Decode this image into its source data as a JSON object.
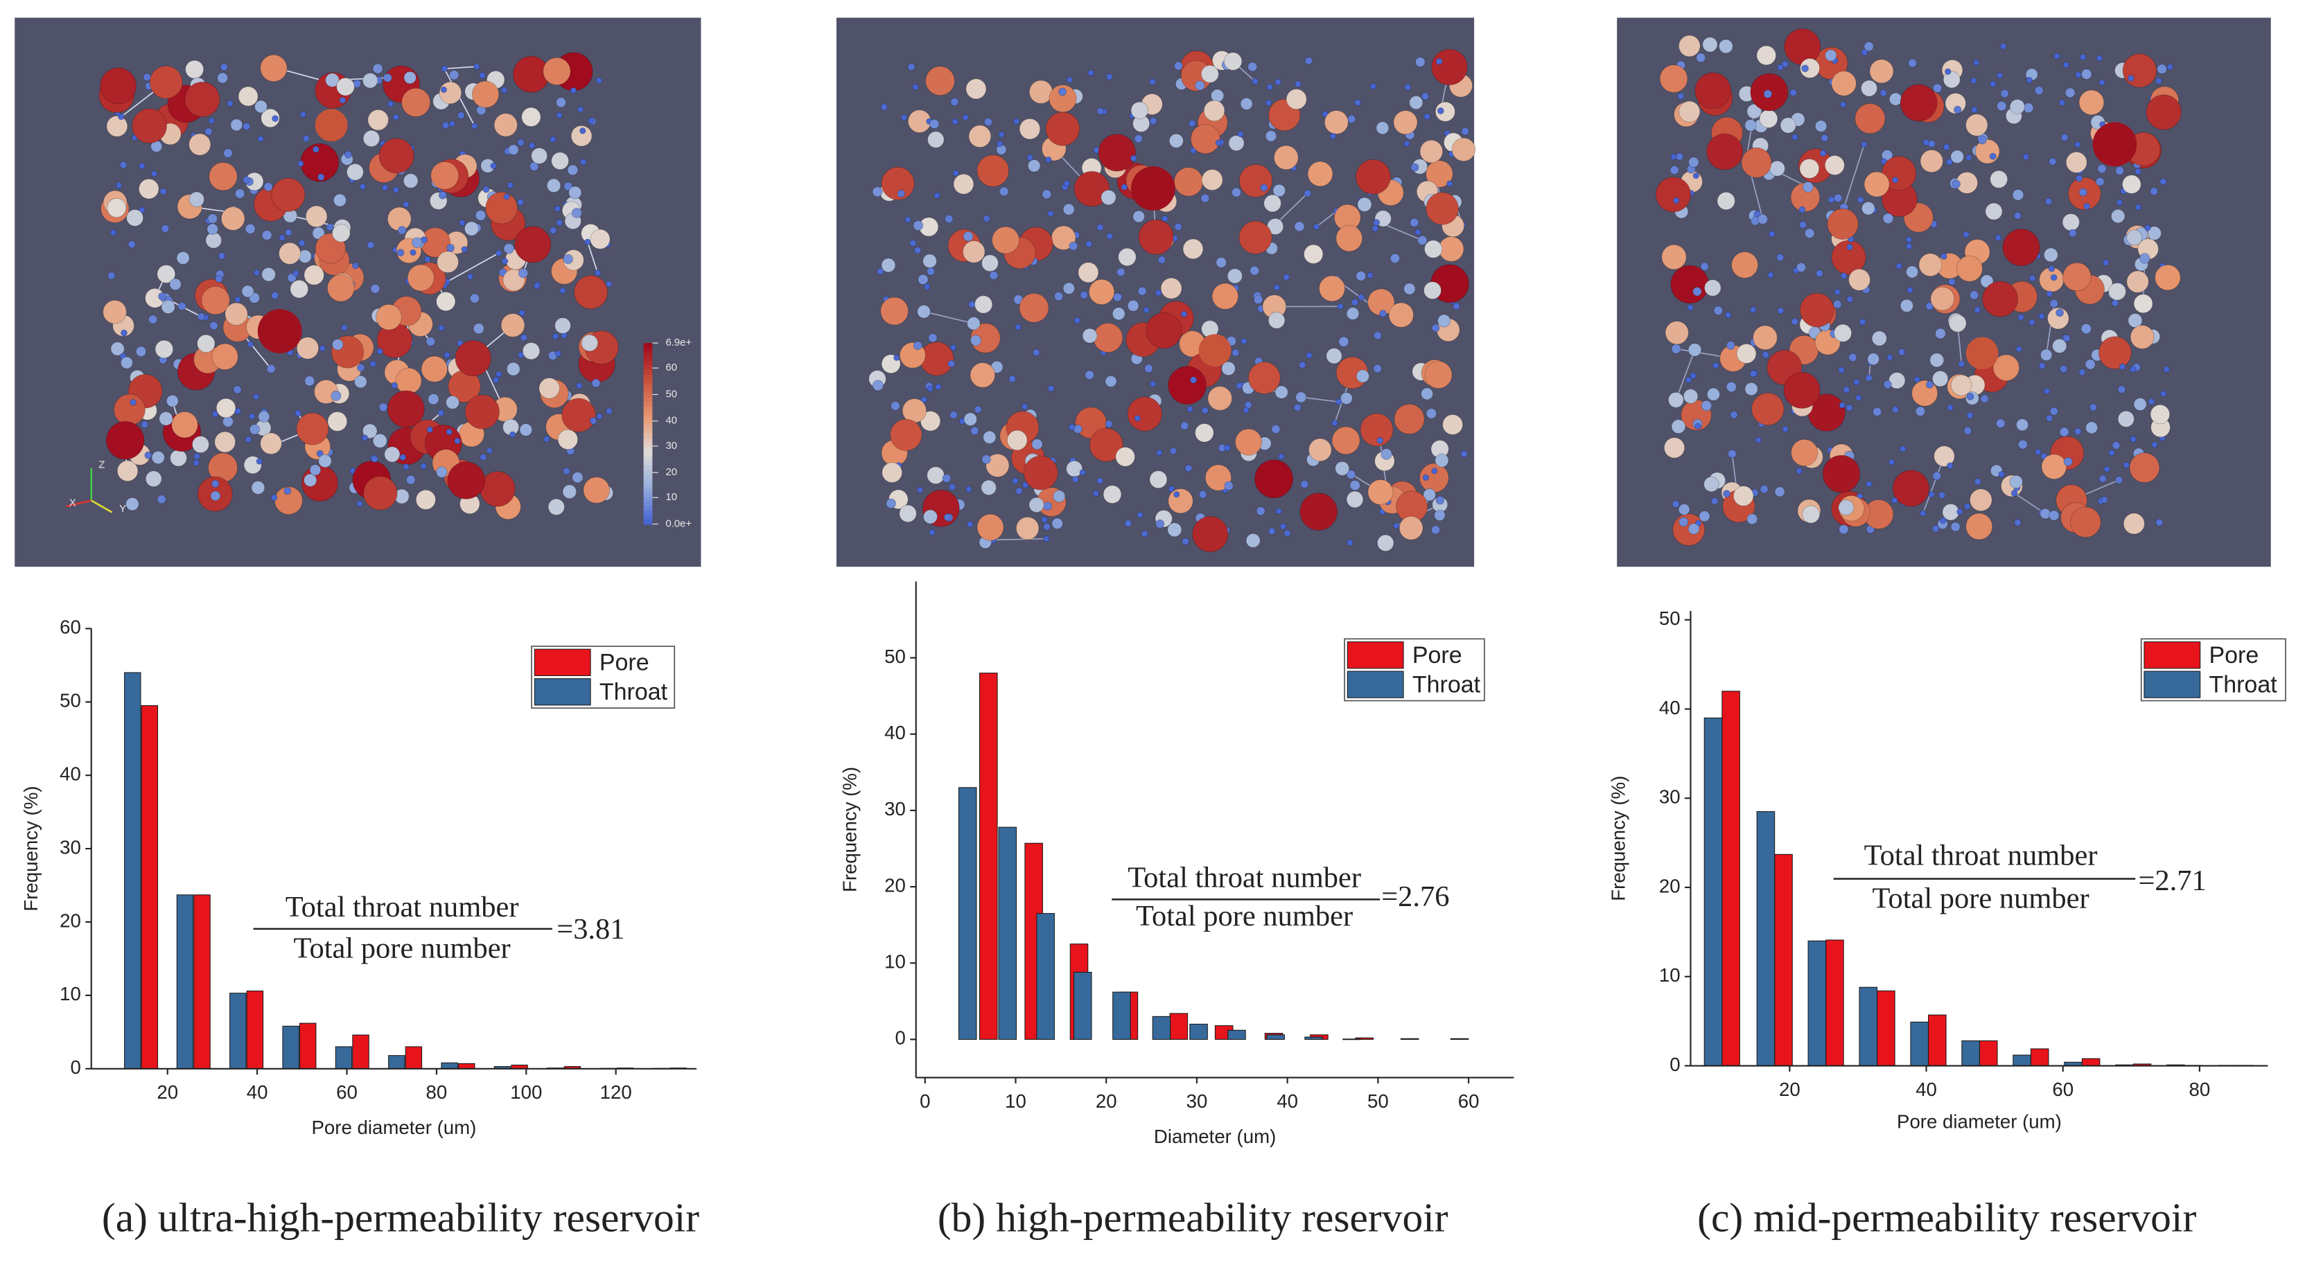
{
  "chart_data": [
    {
      "type": "bar",
      "caption": "(a) ultra-high-permeability  reservoir",
      "xlabel": "Pore diameter (um)",
      "ylabel": "Frequency (%)",
      "xlim": [
        3,
        138
      ],
      "xticks": [
        20,
        40,
        60,
        80,
        100,
        120
      ],
      "ylim": [
        0,
        60
      ],
      "yticks": [
        0,
        10,
        20,
        30,
        40,
        50,
        60
      ],
      "legend": "upper right",
      "series": [
        {
          "name": "Pore",
          "color": "#e8141c",
          "x": [
            16,
            27.7,
            39.5,
            51.3,
            63.1,
            74.9,
            86.7,
            98.5,
            110.3,
            122.1,
            133.9
          ],
          "values": [
            49.5,
            23.7,
            10.6,
            6.2,
            4.6,
            3,
            0.7,
            0.5,
            0.3,
            0.1,
            0.1
          ]
        },
        {
          "name": "Throat",
          "color": "#376a9b",
          "x": [
            12.2,
            23.9,
            35.7,
            47.5,
            59.3,
            71.1,
            82.9,
            94.7,
            106.5,
            118.3,
            130.1
          ],
          "values": [
            54,
            23.7,
            10.3,
            5.8,
            3,
            1.8,
            0.8,
            0.3,
            0.1,
            0.05,
            0.05
          ]
        }
      ],
      "annotation": {
        "numerator": "Total throat number",
        "denominator": "Total pore number",
        "result": "=3.81"
      }
    },
    {
      "type": "bar",
      "caption": "(b) high-permeability  reservoir",
      "xlabel": "Diameter (um)",
      "ylabel": "Frequency (%)",
      "xlim": [
        -1,
        65
      ],
      "xticks": [
        0,
        10,
        20,
        30,
        40,
        50,
        60
      ],
      "ylim": [
        -5,
        60
      ],
      "yticks": [
        0,
        10,
        20,
        30,
        40,
        50
      ],
      "legend": "upper right",
      "series": [
        {
          "name": "Pore",
          "color": "#e8141c",
          "x": [
            7,
            12,
            17,
            22.5,
            28,
            33,
            38.5,
            43.5,
            48.5,
            53.5,
            59
          ],
          "values": [
            48,
            25.7,
            12.5,
            6.2,
            3.4,
            1.8,
            0.8,
            0.6,
            0.2,
            0.1,
            0.1
          ]
        },
        {
          "name": "Throat",
          "color": "#376a9b",
          "x": [
            4.7,
            9.1,
            13.3,
            17.4,
            21.7,
            26.1,
            30.2,
            34.4,
            38.7,
            42.9,
            47.1
          ],
          "values": [
            33,
            27.8,
            16.5,
            8.8,
            6.2,
            3,
            2,
            1.2,
            0.6,
            0.3,
            0.05
          ]
        }
      ],
      "annotation": {
        "numerator": "Total throat number",
        "denominator": "Total pore number",
        "result": "=2.76"
      }
    },
    {
      "type": "bar",
      "caption": "(c) mid-permeability  reservoir",
      "xlabel": "Pore diameter (um)",
      "ylabel": "Frequency (%)",
      "xlim": [
        5.5,
        90
      ],
      "xticks": [
        20,
        40,
        60,
        80
      ],
      "ylim": [
        0,
        51
      ],
      "yticks": [
        0,
        10,
        20,
        30,
        40,
        50
      ],
      "legend": "upper right",
      "series": [
        {
          "name": "Pore",
          "color": "#e8141c",
          "x": [
            11.4,
            19.1,
            26.6,
            34.1,
            41.6,
            49.1,
            56.6,
            64.1,
            71.6,
            79.1,
            86.6
          ],
          "values": [
            42,
            23.7,
            14.1,
            8.4,
            5.7,
            2.8,
            1.9,
            0.8,
            0.2,
            0.05,
            0.05
          ]
        },
        {
          "name": "Throat",
          "color": "#376a9b",
          "x": [
            8.8,
            16.5,
            24,
            31.5,
            39,
            46.5,
            54,
            61.5,
            69,
            76.5,
            84
          ],
          "values": [
            39,
            28.5,
            14,
            8.8,
            4.9,
            2.8,
            1.2,
            0.4,
            0.1,
            0.1,
            0.05
          ]
        }
      ],
      "annotation": {
        "numerator": "Total throat number",
        "denominator": "Total pore number",
        "result": "=2.71"
      }
    }
  ],
  "render_labels": {
    "colorbar": [
      "6.9e+",
      "60",
      "50",
      "40",
      "30",
      "20",
      "10",
      "0.0e+"
    ],
    "axes": [
      "Z",
      "X",
      "Y"
    ]
  }
}
